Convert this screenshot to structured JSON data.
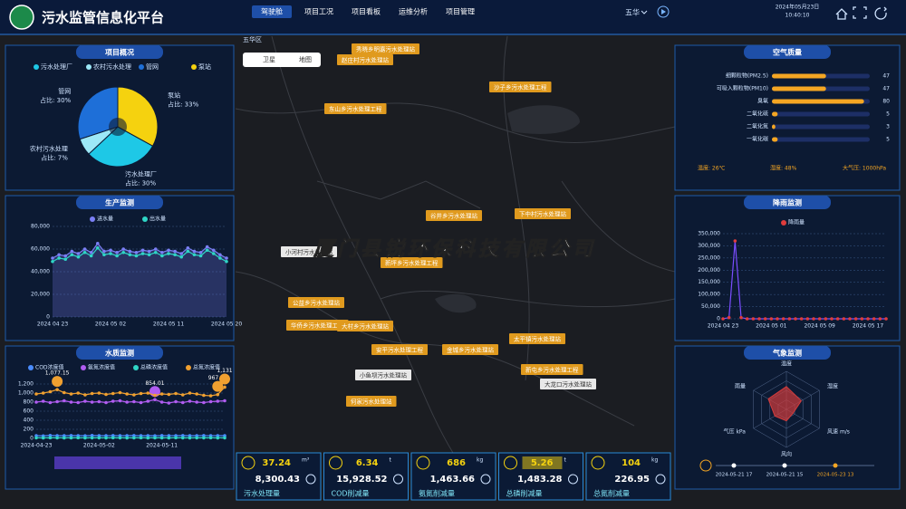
{
  "header": {
    "title": "污水监管信息化平台",
    "nav": [
      "驾驶舱",
      "项目工况",
      "项目看板",
      "运维分析",
      "项目管理"
    ],
    "region": "五华",
    "date": "2024年05月23日",
    "time": "10:40:10"
  },
  "map": {
    "district": "五华区",
    "layers": [
      "卫星",
      "地图"
    ],
    "watermark": "厦门县锐环保科技有限公司",
    "stations": [
      "秀晓乡明嘉污水处理站",
      "赵庄村污水处理站",
      "沙子乡污水处理工程",
      "东山乡污水处理工程",
      "谷井乡污水处理站",
      "下中村污水处理站",
      "小河村污水处理站",
      "新坪乡污水处理工程",
      "公益乡污水处理站",
      "华侨乡污水处理工程",
      "大村乡污水处理站",
      "安平污水处理工程",
      "金城乡污水处理站",
      "太平镇污水处理站",
      "新屯乡污水处理工程",
      "大龙口污水处理站",
      "小鱼坝污水处理站",
      "何家污水处理站"
    ]
  },
  "chart_data": [
    {
      "type": "pie",
      "title": "项目概况",
      "categories": [
        "污水处理厂",
        "农村污水处理",
        "管网",
        "泵站"
      ],
      "values": [
        30,
        7,
        30,
        33
      ],
      "value_labels": [
        "占比: 30%",
        "占比: 7%",
        "占比: 30%",
        "占比: 33%"
      ],
      "colors": [
        "#1ec8e6",
        "#9de8f7",
        "#1e6fd8",
        "#f5d20f"
      ]
    },
    {
      "type": "line",
      "title": "生产监测",
      "area": true,
      "grid": true,
      "categories": [
        "2024 04 23",
        null,
        null,
        null,
        null,
        null,
        null,
        null,
        null,
        "2024 05 02",
        null,
        null,
        null,
        null,
        null,
        null,
        null,
        null,
        "2024 05 11",
        null,
        null,
        null,
        null,
        null,
        null,
        null,
        null,
        "2024 05 20"
      ],
      "ylim": [
        0,
        80000
      ],
      "yticks": [
        0,
        {
          "value": 20000,
          "label": "20,000"
        },
        {
          "value": 40000,
          "label": "40,000"
        },
        {
          "value": 60000,
          "label": "60,000"
        },
        {
          "value": 80000,
          "label": "80,000"
        }
      ],
      "series": [
        {
          "name": "进水量",
          "color": "#7b7ff5",
          "values": [
            52000,
            55000,
            54000,
            58000,
            56000,
            60000,
            57000,
            65000,
            58000,
            59000,
            57000,
            60000,
            58000,
            57000,
            59000,
            58000,
            60000,
            57000,
            59000,
            58000,
            56000,
            61000,
            58000,
            57000,
            62000,
            59000,
            55000,
            52000
          ]
        },
        {
          "name": "出水量",
          "color": "#2fd5c6",
          "values": [
            49000,
            52000,
            51000,
            55000,
            53000,
            57000,
            54000,
            61000,
            55000,
            56000,
            54000,
            57000,
            55000,
            54000,
            56000,
            55000,
            57000,
            54000,
            56000,
            55000,
            53000,
            58000,
            55000,
            54000,
            59000,
            56000,
            52000,
            49000
          ]
        }
      ]
    },
    {
      "type": "line",
      "title": "水质监测",
      "grid": true,
      "categories": [
        "2024-04-23",
        null,
        null,
        null,
        null,
        null,
        null,
        null,
        null,
        "2024-05-02",
        null,
        null,
        null,
        null,
        null,
        null,
        null,
        null,
        "2024-05-11",
        null,
        null,
        null,
        null,
        null,
        null,
        null,
        null,
        null
      ],
      "ylim": [
        0,
        1400
      ],
      "yticks": [
        0,
        200,
        400,
        600,
        800,
        {
          "value": 1000,
          "label": "1,000"
        },
        {
          "value": 1200,
          "label": "1,200"
        }
      ],
      "series": [
        {
          "name": "COD浓度值",
          "color": "#4a8cff",
          "values": [
            60,
            55,
            65,
            60,
            58,
            62,
            60,
            57,
            63,
            60,
            58,
            61,
            59,
            60,
            62,
            58,
            60,
            57,
            61,
            59,
            60,
            62,
            58,
            60,
            61,
            59,
            60,
            58
          ]
        },
        {
          "name": "氨氮浓度值",
          "color": "#b05cf0",
          "values": [
            800,
            820,
            790,
            810,
            830,
            800,
            790,
            820,
            800,
            810,
            790,
            820,
            830,
            800,
            810,
            790,
            820,
            854.01,
            800,
            780,
            810,
            790,
            820,
            800,
            790,
            810,
            820,
            830
          ],
          "value_labels": [
            null,
            null,
            null,
            null,
            null,
            null,
            null,
            null,
            null,
            null,
            null,
            null,
            null,
            null,
            null,
            null,
            null,
            "854.01",
            null,
            null,
            null,
            null,
            null,
            null,
            null,
            null,
            null,
            null
          ]
        },
        {
          "name": "总磷浓度值",
          "color": "#2fd5c6",
          "values": [
            12,
            11,
            13,
            12,
            11,
            12,
            13,
            11,
            12,
            12,
            11,
            13,
            12,
            11,
            12,
            13,
            11,
            12,
            12,
            11,
            13,
            12,
            11,
            12,
            12,
            13,
            11,
            12
          ]
        },
        {
          "name": "总氮浓度值",
          "color": "#f0a030",
          "values": [
            980,
            1000,
            1030,
            1077.15,
            1010,
            980,
            1000,
            960,
            990,
            1000,
            970,
            990,
            1010,
            980,
            960,
            990,
            1000,
            950,
            980,
            970,
            990,
            960,
            1000,
            980,
            950,
            940,
            967.01,
            1131
          ],
          "value_labels": [
            null,
            null,
            null,
            "1,077.15",
            null,
            null,
            null,
            null,
            null,
            null,
            null,
            null,
            null,
            null,
            null,
            null,
            null,
            null,
            null,
            null,
            null,
            null,
            null,
            null,
            null,
            null,
            "967.01",
            "1,131"
          ]
        }
      ]
    },
    {
      "type": "hbar",
      "title": "空气质量",
      "categories": [
        "细颗粒物(PM2.5)",
        "可吸入颗粒物(PM10)",
        "臭氧",
        "二氧化硫",
        "二氧化氮",
        "一氧化碳"
      ],
      "values": [
        47,
        47,
        80,
        5,
        3,
        5
      ],
      "xlim": [
        0,
        85
      ],
      "color": "#f5a623",
      "footer": [
        "温度: 26℃",
        "湿度: 48%",
        "大气压: 1000hPa"
      ]
    },
    {
      "type": "line",
      "title": "降雨监测",
      "grid": true,
      "categories": [
        "2024 04 23",
        null,
        null,
        null,
        null,
        null,
        null,
        null,
        "2024 05 01",
        null,
        null,
        null,
        null,
        null,
        null,
        null,
        "2024 05 09",
        null,
        null,
        null,
        null,
        null,
        null,
        null,
        "2024 05 17",
        null,
        null,
        null
      ],
      "ylim": [
        0,
        350000
      ],
      "yticks": [
        0,
        {
          "value": 50000,
          "label": "50,000"
        },
        {
          "value": 100000,
          "label": "100,000"
        },
        {
          "value": 150000,
          "label": "150,000"
        },
        {
          "value": 200000,
          "label": "200,000"
        },
        {
          "value": 250000,
          "label": "250,000"
        },
        {
          "value": 300000,
          "label": "300,000"
        },
        {
          "value": 350000,
          "label": "350,000"
        }
      ],
      "series": [
        {
          "name": "降雨量",
          "color": "#7b4dff",
          "marker_color": "#e03c3c",
          "values": [
            0,
            5000,
            320000,
            5000,
            0,
            0,
            0,
            0,
            0,
            0,
            0,
            0,
            0,
            0,
            0,
            0,
            0,
            0,
            0,
            0,
            0,
            0,
            0,
            0,
            0,
            0,
            0,
            0
          ]
        }
      ]
    },
    {
      "type": "radar",
      "title": "气象监测",
      "axes": [
        "温度",
        "湿度",
        "风速 m/s",
        "风向",
        "气压 kPa",
        "雨量"
      ],
      "values": [
        60,
        45,
        20,
        30,
        35,
        55
      ],
      "rlim": [
        0,
        100
      ],
      "color": "#d23c3c",
      "timeline": [
        "2024-05-21 17",
        "2024-05-21 15",
        "2024-05-23 13"
      ]
    }
  ],
  "cards": [
    {
      "value": "37.24",
      "unit": "m³",
      "total": "8,300.43",
      "name": "污水处理量"
    },
    {
      "value": "6.34",
      "unit": "t",
      "total": "15,928.52",
      "name": "COD削减量"
    },
    {
      "value": "686",
      "unit": "kg",
      "total": "1,463.66",
      "name": "氨氮削减量"
    },
    {
      "value": "5.26",
      "unit": "t",
      "total": "1,483.28",
      "name": "总磷削减量"
    },
    {
      "value": "104",
      "unit": "kg",
      "total": "226.95",
      "name": "总氮削减量"
    }
  ]
}
